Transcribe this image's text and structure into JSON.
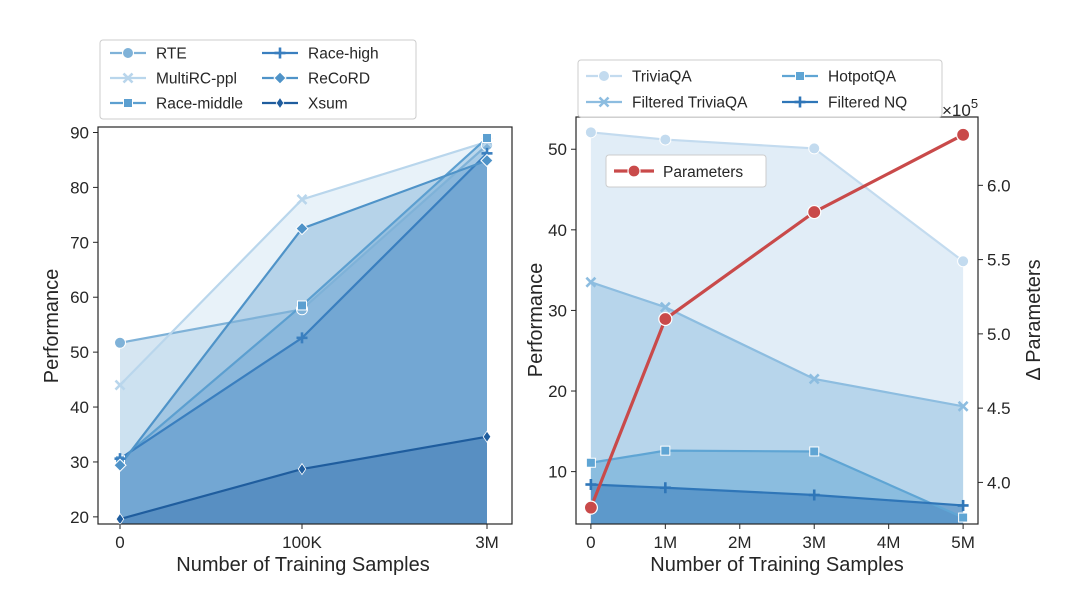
{
  "chart_data": [
    {
      "type": "area",
      "xlabel": "Number of Training Samples",
      "ylabel": "Performance",
      "categories": [
        "0",
        "100K",
        "3M"
      ],
      "yticks": [
        20,
        30,
        40,
        50,
        60,
        70,
        80,
        90
      ],
      "ylim": [
        18.7,
        91
      ],
      "legend": "top",
      "series": [
        {
          "name": "RTE",
          "marker": "circle",
          "color": "#7fb2d8",
          "values": [
            51.7,
            57.8,
            87.7
          ]
        },
        {
          "name": "MultiRC-ppl",
          "marker": "x",
          "color": "#b9d6ec",
          "values": [
            44.0,
            77.8,
            88.3
          ]
        },
        {
          "name": "Race-middle",
          "marker": "square",
          "color": "#5c9fd0",
          "values": [
            30.3,
            58.5,
            89.0
          ]
        },
        {
          "name": "Race-high",
          "marker": "plus",
          "color": "#3a7fbf",
          "values": [
            30.6,
            52.6,
            86.2
          ]
        },
        {
          "name": "ReCoRD",
          "marker": "diamond",
          "color": "#4f93c8",
          "values": [
            29.4,
            72.5,
            84.9
          ]
        },
        {
          "name": "Xsum",
          "marker": "thin_diamond",
          "color": "#1f5d9e",
          "values": [
            19.6,
            28.7,
            34.6
          ]
        }
      ]
    },
    {
      "type": "area",
      "xlabel": "Number of Training Samples",
      "ylabel": "Performance",
      "y2label": "Δ Parameters",
      "y2_multiplier": "×10",
      "y2_exponent": "5",
      "x": [
        0,
        1,
        3,
        5
      ],
      "xticks": [
        "0",
        "1M",
        "2M",
        "3M",
        "4M",
        "5M"
      ],
      "xtick_values": [
        0,
        1,
        2,
        3,
        4,
        5
      ],
      "xlim": [
        -0.2,
        5.2
      ],
      "yticks": [
        10,
        20,
        30,
        40,
        50
      ],
      "ylim": [
        3.5,
        54
      ],
      "y2ticks": [
        "4.0",
        "4.5",
        "5.0",
        "5.5",
        "6.0"
      ],
      "y2tick_values": [
        4.0,
        4.5,
        5.0,
        5.5,
        6.0
      ],
      "y2lim": [
        3.72,
        6.46
      ],
      "legend": "top",
      "series": [
        {
          "name": "TriviaQA",
          "marker": "circle",
          "color": "#c3dbef",
          "values": [
            52.1,
            51.2,
            50.1,
            36.1
          ]
        },
        {
          "name": "Filtered TriviaQA",
          "marker": "x",
          "color": "#8dbde0",
          "values": [
            33.5,
            30.4,
            21.5,
            18.1
          ]
        },
        {
          "name": "HotpotQA",
          "marker": "square",
          "color": "#5fa5d4",
          "values": [
            11.1,
            12.6,
            12.5,
            4.3
          ]
        },
        {
          "name": "Filtered NQ",
          "marker": "plus",
          "color": "#2f76b8",
          "values": [
            8.4,
            8.0,
            7.1,
            5.8
          ]
        }
      ],
      "parameters_series": {
        "name": "Parameters",
        "color": "#c94a4a",
        "values": [
          3.83,
          5.1,
          5.82,
          6.34
        ]
      }
    }
  ]
}
